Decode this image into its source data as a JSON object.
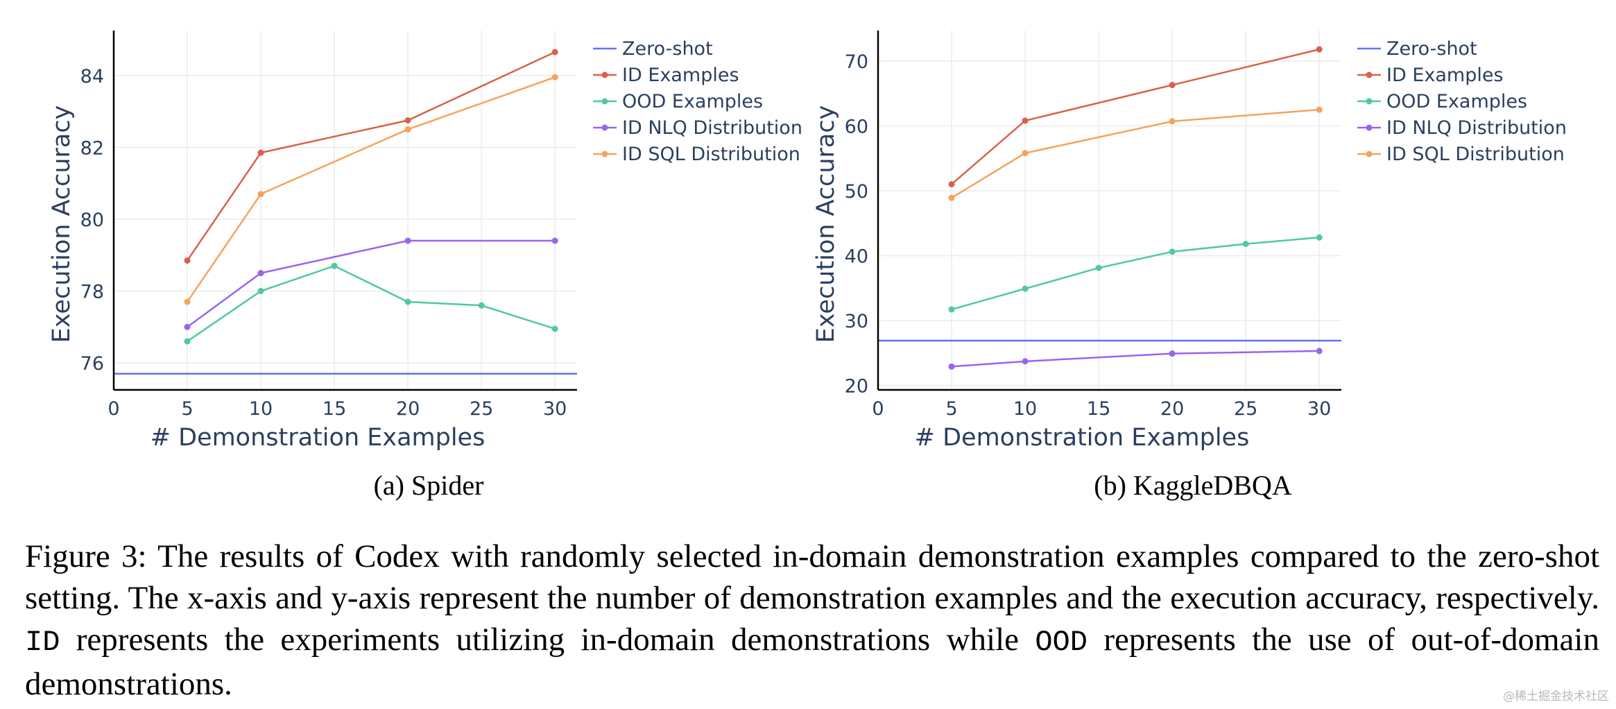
{
  "chart_data": [
    {
      "type": "line",
      "subcaption": "(a) Spider",
      "xlabel": "# Demonstration Examples",
      "ylabel": "Execution Accuracy",
      "xlim": [
        0,
        31.5
      ],
      "ylim": [
        75.25,
        85.25
      ],
      "xticks": [
        0,
        5,
        10,
        15,
        20,
        25,
        30
      ],
      "yticks": [
        76,
        78,
        80,
        82,
        84
      ],
      "series": [
        {
          "name": "Zero-shot",
          "color": "#636efa",
          "markers": false,
          "x": [
            0,
            31.5
          ],
          "y": [
            75.7,
            75.7
          ]
        },
        {
          "name": "ID Examples",
          "color": "#d9614a",
          "markers": true,
          "x": [
            5,
            10,
            20,
            30
          ],
          "y": [
            78.85,
            81.85,
            82.75,
            84.65
          ]
        },
        {
          "name": "OOD Examples",
          "color": "#4fc9a0",
          "markers": true,
          "x": [
            5,
            10,
            15,
            20,
            25,
            30
          ],
          "y": [
            76.6,
            78.0,
            78.7,
            77.7,
            77.6,
            76.95
          ]
        },
        {
          "name": "ID NLQ Distribution",
          "color": "#9b63f0",
          "markers": true,
          "x": [
            5,
            10,
            20,
            30
          ],
          "y": [
            77.0,
            78.5,
            79.4,
            79.4
          ]
        },
        {
          "name": "ID SQL Distribution",
          "color": "#f5a35c",
          "markers": true,
          "x": [
            5,
            10,
            20,
            30
          ],
          "y": [
            77.7,
            80.7,
            82.5,
            83.95
          ]
        }
      ]
    },
    {
      "type": "line",
      "subcaption": "(b) KaggleDBQA",
      "xlabel": "# Demonstration Examples",
      "ylabel": "Execution Accuracy",
      "xlim": [
        0,
        31.5
      ],
      "ylim": [
        19.3,
        74.7
      ],
      "xticks": [
        0,
        5,
        10,
        15,
        20,
        25,
        30
      ],
      "yticks": [
        20,
        30,
        40,
        50,
        60,
        70
      ],
      "series": [
        {
          "name": "Zero-shot",
          "color": "#636efa",
          "markers": false,
          "x": [
            0,
            31.5
          ],
          "y": [
            26.9,
            26.9
          ]
        },
        {
          "name": "ID Examples",
          "color": "#d9614a",
          "markers": true,
          "x": [
            5,
            10,
            20,
            30
          ],
          "y": [
            51.0,
            60.8,
            66.3,
            71.8
          ]
        },
        {
          "name": "OOD Examples",
          "color": "#4fc9a0",
          "markers": true,
          "x": [
            5,
            10,
            15,
            20,
            25,
            30
          ],
          "y": [
            31.7,
            34.9,
            38.1,
            40.6,
            41.8,
            42.8
          ]
        },
        {
          "name": "ID NLQ Distribution",
          "color": "#9b63f0",
          "markers": true,
          "x": [
            5,
            10,
            20,
            30
          ],
          "y": [
            22.9,
            23.7,
            24.9,
            25.3
          ]
        },
        {
          "name": "ID SQL Distribution",
          "color": "#f5a35c",
          "markers": true,
          "x": [
            5,
            10,
            20,
            30
          ],
          "y": [
            48.9,
            55.8,
            60.7,
            62.5
          ]
        }
      ]
    }
  ],
  "caption": {
    "part1": "Figure 3: The results of Codex with randomly selected in-domain demonstration examples compared to the zero-shot setting. The x-axis and y-axis represent the number of demonstration examples and the execution accuracy, respectively. ",
    "id_term": "ID",
    "part2": " represents the experiments utilizing in-domain demonstrations while ",
    "ood_term": "OOD",
    "part3": " represents the use of out-of-domain demonstrations."
  },
  "watermark": "@稀土掘金技术社区"
}
